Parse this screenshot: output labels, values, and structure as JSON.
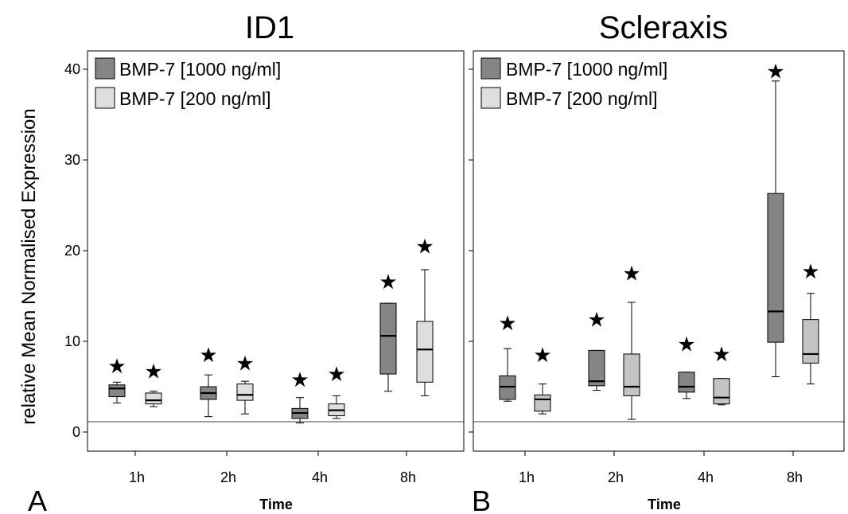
{
  "figure": {
    "ylabel": "relative Mean Normalised Expression",
    "y_ticks": [
      0,
      10,
      20,
      30,
      40
    ],
    "reference_line_y": 1
  },
  "colors": {
    "dose_1000": "#858585",
    "dose_200": "#dedede",
    "dose_1000_light": "#9a9a9a",
    "dose_200_light": "#c4c4c4"
  },
  "chart_data": [
    {
      "type": "box",
      "panel_letter": "A",
      "title": "ID1",
      "xlabel": "Time",
      "ylabel": "relative Mean Normalised Expression",
      "ylim": [
        -2,
        42
      ],
      "y_ticks": [
        0,
        10,
        20,
        30,
        40
      ],
      "categories": [
        "1h",
        "2h",
        "4h",
        "8h"
      ],
      "grid": false,
      "legend_position": "top-left",
      "reference_line": 1,
      "significance_marker": "★",
      "series": [
        {
          "name": "BMP-7 [1000 ng/ml]",
          "color_key": "dose_1000",
          "boxes": [
            {
              "min": 3.2,
              "q1": 3.9,
              "median": 4.8,
              "q3": 5.2,
              "max": 5.5,
              "star": 7.3
            },
            {
              "min": 1.7,
              "q1": 3.6,
              "median": 4.3,
              "q3": 5.0,
              "max": 6.3,
              "star": 8.5
            },
            {
              "min": 1.0,
              "q1": 1.5,
              "median": 2.1,
              "q3": 2.6,
              "max": 3.8,
              "star": 5.8
            },
            {
              "min": 4.5,
              "q1": 6.4,
              "median": 10.6,
              "q3": 14.2,
              "max": 14.2,
              "star": 16.6
            }
          ]
        },
        {
          "name": "BMP-7 [200 ng/ml]",
          "color_key": "dose_200",
          "boxes": [
            {
              "min": 2.8,
              "q1": 3.1,
              "median": 3.5,
              "q3": 4.3,
              "max": 4.5,
              "star": 6.7
            },
            {
              "min": 2.0,
              "q1": 3.5,
              "median": 4.1,
              "q3": 5.3,
              "max": 5.6,
              "star": 7.6
            },
            {
              "min": 1.5,
              "q1": 1.8,
              "median": 2.4,
              "q3": 3.1,
              "max": 4.0,
              "star": 6.4
            },
            {
              "min": 4.0,
              "q1": 5.5,
              "median": 9.1,
              "q3": 12.2,
              "max": 17.9,
              "star": 20.5
            }
          ]
        }
      ]
    },
    {
      "type": "box",
      "panel_letter": "B",
      "title": "Scleraxis",
      "xlabel": "Time",
      "ylabel": "",
      "ylim": [
        -2,
        42
      ],
      "y_ticks": [
        0,
        10,
        20,
        30,
        40
      ],
      "categories": [
        "1h",
        "2h",
        "4h",
        "8h"
      ],
      "grid": false,
      "legend_position": "top-left",
      "reference_line": 1,
      "significance_marker": "★",
      "series": [
        {
          "name": "BMP-7 [1000 ng/ml]",
          "color_key": "dose_1000",
          "boxes": [
            {
              "min": 3.4,
              "q1": 3.6,
              "median": 5.0,
              "q3": 6.2,
              "max": 9.2,
              "star": 12.0
            },
            {
              "min": 4.6,
              "q1": 5.1,
              "median": 5.6,
              "q3": 9.0,
              "max": 9.0,
              "star": 12.4
            },
            {
              "min": 3.7,
              "q1": 4.4,
              "median": 5.0,
              "q3": 6.6,
              "max": 6.6,
              "star": 9.7
            },
            {
              "min": 6.1,
              "q1": 9.9,
              "median": 13.3,
              "q3": 26.3,
              "max": 38.7,
              "star": 39.8
            }
          ]
        },
        {
          "name": "BMP-7 [200 ng/ml]",
          "color_key": "dose_200",
          "boxes": [
            {
              "min": 2.0,
              "q1": 2.3,
              "median": 3.6,
              "q3": 4.1,
              "max": 5.3,
              "star": 8.5
            },
            {
              "min": 1.4,
              "q1": 4.0,
              "median": 5.0,
              "q3": 8.6,
              "max": 14.3,
              "star": 17.5
            },
            {
              "min": 3.0,
              "q1": 3.1,
              "median": 3.8,
              "q3": 5.9,
              "max": 5.9,
              "star": 8.6
            },
            {
              "min": 5.3,
              "q1": 7.6,
              "median": 8.6,
              "q3": 12.4,
              "max": 15.3,
              "star": 17.7
            }
          ]
        }
      ]
    }
  ]
}
